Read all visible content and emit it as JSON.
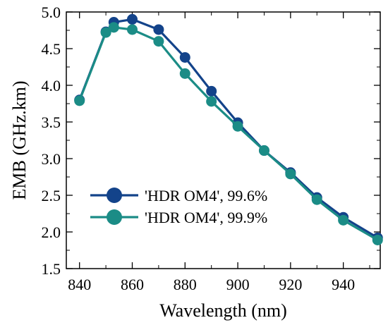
{
  "chart_data": {
    "type": "line",
    "title": "",
    "xlabel": "Wavelength (nm)",
    "ylabel": "EMB (GHz.km)",
    "xlim": [
      835,
      954
    ],
    "ylim": [
      1.5,
      5.0
    ],
    "xticks": [
      840,
      860,
      880,
      900,
      920,
      940
    ],
    "yticks": [
      1.5,
      2.0,
      2.5,
      3.0,
      3.5,
      4.0,
      4.5,
      5.0
    ],
    "xtick_labels": [
      "840",
      "860",
      "880",
      "900",
      "920",
      "940"
    ],
    "ytick_labels": [
      "1.5",
      "2.0",
      "2.5",
      "3.0",
      "3.5",
      "4.0",
      "4.5",
      "5.0"
    ],
    "grid": false,
    "legend_position": "center-left",
    "series": [
      {
        "name": "'HDR OM4', 99.6%",
        "color": "#13438a",
        "x": [
          840,
          850,
          853,
          860,
          870,
          880,
          890,
          900,
          910,
          920,
          930,
          940,
          953
        ],
        "y": [
          3.8,
          4.73,
          4.86,
          4.9,
          4.76,
          4.38,
          3.92,
          3.49,
          3.11,
          2.81,
          2.47,
          2.2,
          1.92
        ]
      },
      {
        "name": "'HDR OM4', 99.9%",
        "color": "#1b8c86",
        "x": [
          840,
          850,
          853,
          860,
          870,
          880,
          890,
          900,
          910,
          920,
          930,
          940,
          953
        ],
        "y": [
          3.79,
          4.72,
          4.79,
          4.76,
          4.6,
          4.16,
          3.78,
          3.44,
          3.11,
          2.79,
          2.44,
          2.16,
          1.89
        ]
      }
    ]
  }
}
